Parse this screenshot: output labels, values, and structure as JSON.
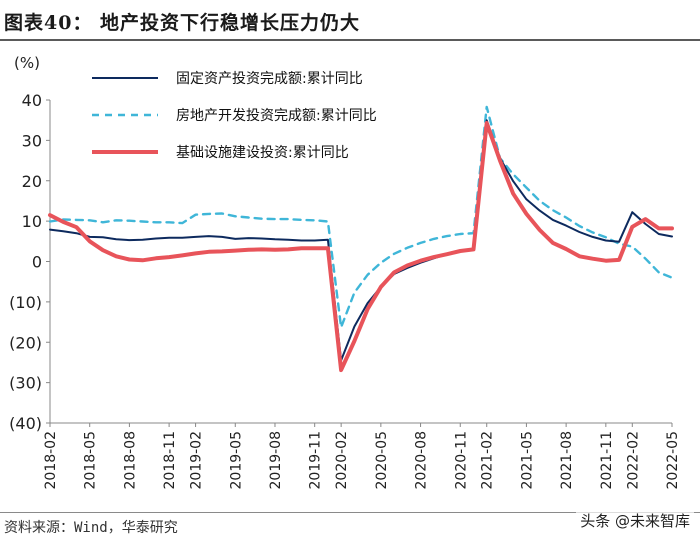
{
  "header": {
    "title": "图表40：  地产投资下行稳增长压力仍大"
  },
  "footer": {
    "source": "资料来源：Wind，华泰研究",
    "watermark": "头条 @未来智库"
  },
  "colors": {
    "fai": "#0d2a5e",
    "realestate": "#3fb6d8",
    "infra": "#e8545a"
  },
  "chart_data": {
    "type": "line",
    "unit_label": "(%)",
    "ylim": [
      -40,
      40
    ],
    "yticks": [
      40,
      30,
      20,
      10,
      0,
      -10,
      -20,
      -30,
      -40
    ],
    "ytick_labels": [
      "40",
      "30",
      "20",
      "10",
      "0",
      "(10)",
      "(20)",
      "(30)",
      "(40)"
    ],
    "x": [
      "2018-02",
      "2018-03",
      "2018-04",
      "2018-05",
      "2018-06",
      "2018-07",
      "2018-08",
      "2018-09",
      "2018-10",
      "2018-11",
      "2018-12",
      "2019-02",
      "2019-03",
      "2019-04",
      "2019-05",
      "2019-06",
      "2019-07",
      "2019-08",
      "2019-09",
      "2019-10",
      "2019-11",
      "2019-12",
      "2020-02",
      "2020-03",
      "2020-04",
      "2020-05",
      "2020-06",
      "2020-07",
      "2020-08",
      "2020-09",
      "2020-10",
      "2020-11",
      "2020-12",
      "2021-02",
      "2021-03",
      "2021-04",
      "2021-05",
      "2021-06",
      "2021-07",
      "2021-08",
      "2021-09",
      "2021-10",
      "2021-11",
      "2021-12",
      "2022-02",
      "2022-03",
      "2022-04",
      "2022-05"
    ],
    "xtick_labels": [
      "2018-02",
      "2018-05",
      "2018-08",
      "2018-11",
      "2019-02",
      "2019-05",
      "2019-08",
      "2019-11",
      "2020-02",
      "2020-05",
      "2020-08",
      "2020-11",
      "2021-02",
      "2021-05",
      "2021-08",
      "2021-11",
      "2022-02",
      "2022-05"
    ],
    "legend_position": "top-left",
    "series": [
      {
        "name": "固定资产投资完成额:累计同比",
        "style": "solid",
        "color_key": "fai",
        "values": [
          7.9,
          7.5,
          7.0,
          6.1,
          6.0,
          5.5,
          5.3,
          5.4,
          5.7,
          5.9,
          5.9,
          6.1,
          6.3,
          6.1,
          5.6,
          5.8,
          5.7,
          5.5,
          5.4,
          5.2,
          5.2,
          5.4,
          -24.5,
          -16.1,
          -10.3,
          -6.3,
          -3.1,
          -1.6,
          -0.3,
          0.8,
          1.8,
          2.6,
          2.9,
          35.0,
          25.6,
          19.9,
          15.4,
          12.6,
          10.3,
          8.9,
          7.3,
          6.1,
          5.2,
          4.9,
          12.2,
          9.3,
          6.8,
          6.2
        ]
      },
      {
        "name": "房地产开发投资完成额:累计同比",
        "style": "dashed",
        "color_key": "realestate",
        "values": [
          9.9,
          10.4,
          10.3,
          10.2,
          9.7,
          10.2,
          10.1,
          9.9,
          9.7,
          9.7,
          9.5,
          11.6,
          11.8,
          11.9,
          11.2,
          10.9,
          10.6,
          10.5,
          10.5,
          10.3,
          10.2,
          9.9,
          -16.3,
          -7.7,
          -3.3,
          -0.3,
          1.9,
          3.4,
          4.6,
          5.6,
          6.3,
          6.8,
          7.0,
          38.3,
          25.6,
          21.6,
          18.3,
          15.0,
          12.7,
          10.9,
          8.8,
          7.2,
          6.0,
          4.4,
          3.7,
          0.7,
          -2.7,
          -4.0
        ]
      },
      {
        "name": "基础设施建设投资:累计同比",
        "style": "solid-thick",
        "color_key": "infra",
        "values": [
          11.5,
          9.8,
          8.5,
          5.0,
          2.8,
          1.3,
          0.5,
          0.3,
          0.8,
          1.1,
          1.5,
          2.0,
          2.4,
          2.5,
          2.7,
          2.9,
          3.0,
          2.9,
          3.0,
          3.3,
          3.3,
          3.3,
          -26.9,
          -19.7,
          -11.8,
          -6.3,
          -2.7,
          -1.0,
          0.2,
          1.1,
          1.8,
          2.6,
          3.0,
          34.3,
          25.0,
          16.8,
          11.8,
          7.8,
          4.6,
          3.1,
          1.3,
          0.7,
          0.2,
          0.4,
          8.6,
          10.5,
          8.2,
          8.2
        ]
      }
    ]
  }
}
